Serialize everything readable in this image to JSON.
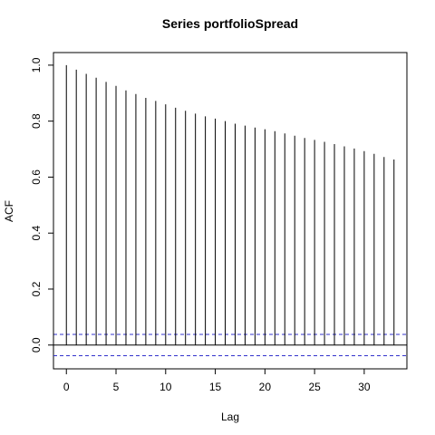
{
  "chart_data": {
    "type": "bar",
    "title": "Series  portfolioSpread",
    "xlabel": "Lag",
    "ylabel": "ACF",
    "xlim": [
      -1.3,
      34.3
    ],
    "ylim": [
      -0.085,
      1.045
    ],
    "x_ticks": [
      0,
      5,
      10,
      15,
      20,
      25,
      30
    ],
    "y_ticks": [
      0.0,
      0.2,
      0.4,
      0.6,
      0.8,
      1.0
    ],
    "y_tick_labels": [
      "0.0",
      "0.2",
      "0.4",
      "0.6",
      "0.8",
      "1.0"
    ],
    "lags": [
      0,
      1,
      2,
      3,
      4,
      5,
      6,
      7,
      8,
      9,
      10,
      11,
      12,
      13,
      14,
      15,
      16,
      17,
      18,
      19,
      20,
      21,
      22,
      23,
      24,
      25,
      26,
      27,
      28,
      29,
      30,
      31,
      32,
      33
    ],
    "values": [
      1.0,
      0.984,
      0.969,
      0.955,
      0.94,
      0.926,
      0.91,
      0.897,
      0.883,
      0.872,
      0.86,
      0.848,
      0.837,
      0.827,
      0.817,
      0.809,
      0.8,
      0.791,
      0.784,
      0.777,
      0.771,
      0.764,
      0.756,
      0.748,
      0.74,
      0.733,
      0.726,
      0.718,
      0.71,
      0.702,
      0.693,
      0.683,
      0.672,
      0.663
    ],
    "confidence_bound": 0.038,
    "colors": {
      "bars": "#000000",
      "confidence": "#3333cc",
      "zero_line": "#000000"
    },
    "grid": false
  }
}
